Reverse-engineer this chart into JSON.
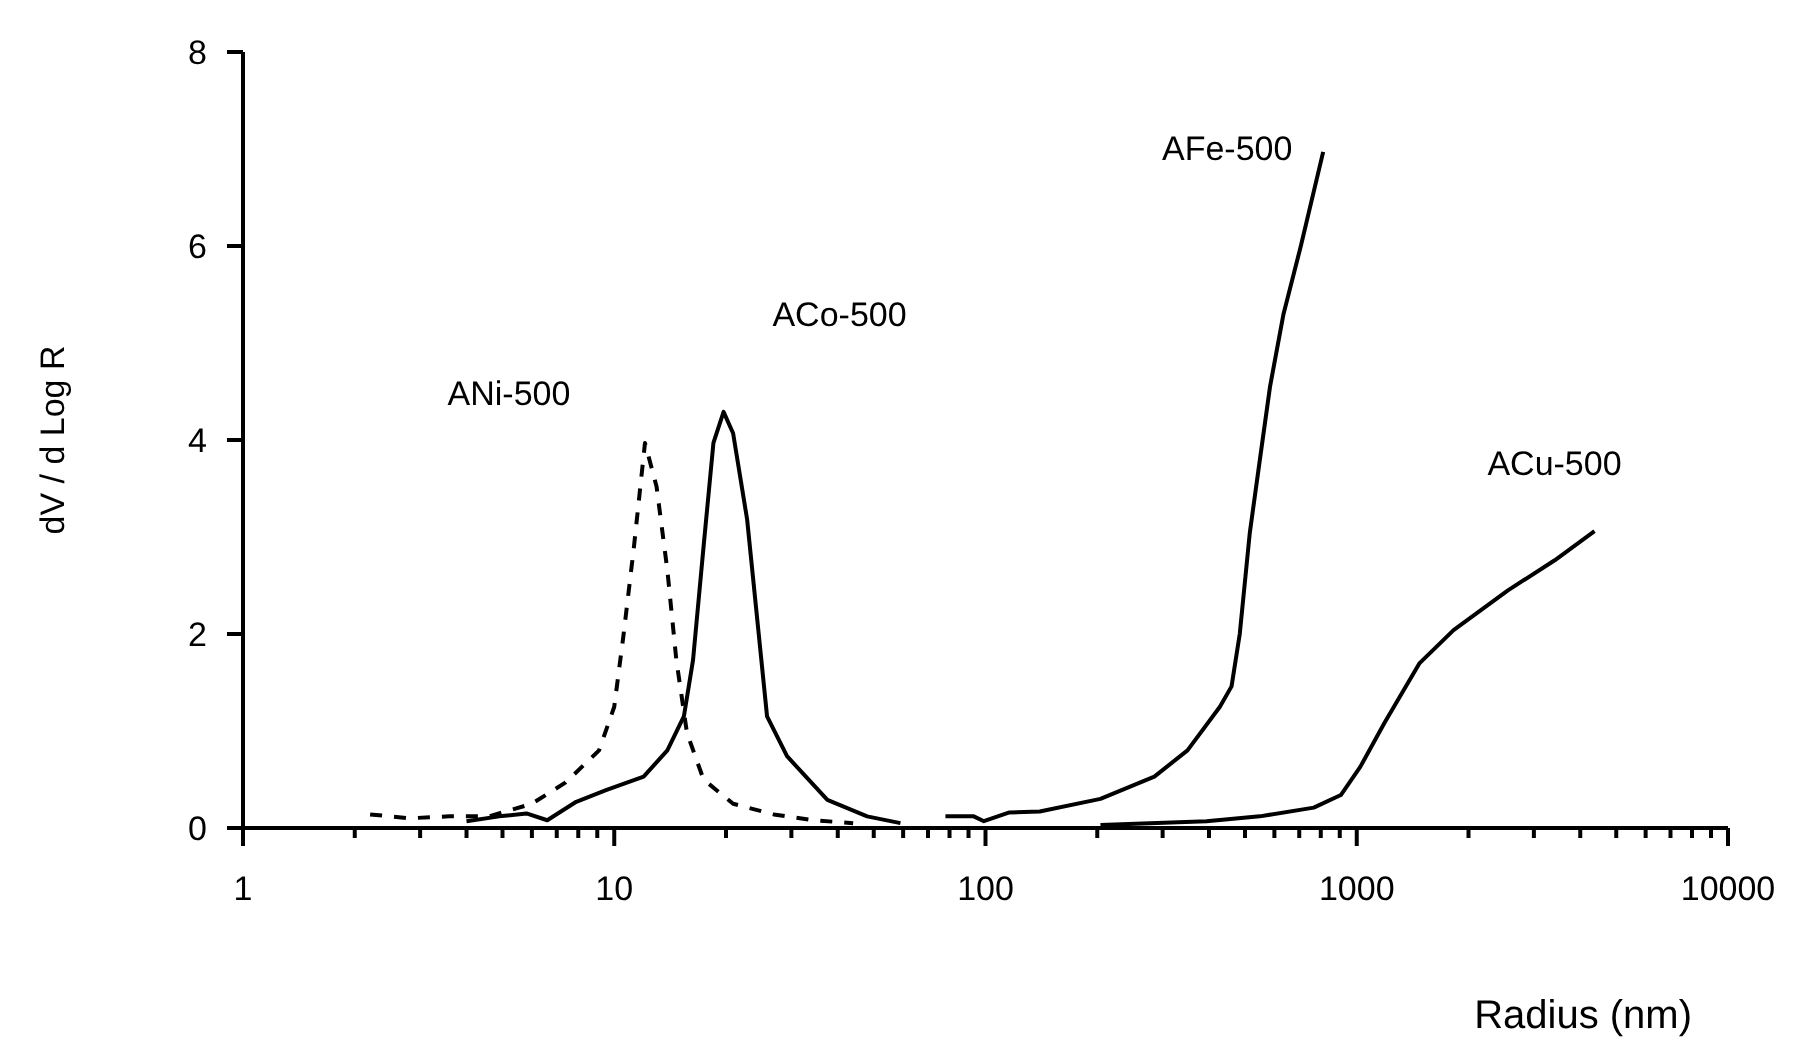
{
  "chart_data": {
    "type": "line",
    "xlabel": "Radius (nm)",
    "ylabel": "dV / d Log R",
    "log": "x",
    "xlim": [
      1,
      10000
    ],
    "xticks": [
      1,
      {
        "value": 2,
        "label": null
      },
      {
        "value": 3,
        "label": null
      },
      {
        "value": 4,
        "label": null
      },
      {
        "value": 5,
        "label": null
      },
      {
        "value": 6,
        "label": null
      },
      {
        "value": 7,
        "label": null
      },
      {
        "value": 8,
        "label": null
      },
      {
        "value": 9,
        "label": null
      },
      10,
      {
        "value": 20,
        "label": null
      },
      {
        "value": 30,
        "label": null
      },
      {
        "value": 40,
        "label": null
      },
      {
        "value": 50,
        "label": null
      },
      {
        "value": 60,
        "label": null
      },
      {
        "value": 70,
        "label": null
      },
      {
        "value": 80,
        "label": null
      },
      {
        "value": 90,
        "label": null
      },
      100,
      {
        "value": 200,
        "label": null
      },
      {
        "value": 300,
        "label": null
      },
      {
        "value": 400,
        "label": null
      },
      {
        "value": 500,
        "label": null
      },
      {
        "value": 600,
        "label": null
      },
      {
        "value": 700,
        "label": null
      },
      {
        "value": 800,
        "label": null
      },
      {
        "value": 900,
        "label": null
      },
      1000,
      {
        "value": 2000,
        "label": null
      },
      {
        "value": 3000,
        "label": null
      },
      {
        "value": 4000,
        "label": null
      },
      {
        "value": 5000,
        "label": null
      },
      {
        "value": 6000,
        "label": null
      },
      {
        "value": 7000,
        "label": null
      },
      {
        "value": 8000,
        "label": null
      },
      {
        "value": 9000,
        "label": null
      },
      10000
    ],
    "ylim": [
      0,
      8
    ],
    "yticks": [
      0,
      2,
      4,
      6,
      8
    ],
    "grid": false,
    "legend": false,
    "marker": "none",
    "series": [
      {
        "name": "ANi-500",
        "color": "#000000",
        "line_style": "dashed",
        "x": [
          2.2,
          2.8,
          3.6,
          4.6,
          6.0,
          7.4,
          9.1,
          10.0,
          10.6,
          11.3,
          12.1,
          13.0,
          13.9,
          14.7,
          15.7,
          17.4,
          20.9,
          26.9,
          34.4,
          44
        ],
        "values": [
          0.14,
          0.1,
          0.12,
          0.12,
          0.25,
          0.47,
          0.8,
          1.25,
          2.0,
          2.9,
          3.97,
          3.52,
          2.66,
          1.73,
          0.98,
          0.5,
          0.25,
          0.14,
          0.08,
          0.05
        ]
      },
      {
        "name": "ACo-500",
        "color": "#000000",
        "line_style": "solid",
        "x": [
          4.0,
          4.9,
          5.8,
          6.6,
          7.9,
          9.5,
          12.0,
          13.9,
          15.4,
          16.3,
          17.4,
          18.5,
          19.7,
          20.9,
          22.8,
          25.8,
          29.2,
          37.5,
          48,
          59
        ],
        "values": [
          0.07,
          0.12,
          0.15,
          0.08,
          0.27,
          0.39,
          0.53,
          0.8,
          1.15,
          1.73,
          2.9,
          3.97,
          4.29,
          4.07,
          3.18,
          1.15,
          0.74,
          0.29,
          0.12,
          0.05
        ]
      },
      {
        "name": "AFe-500",
        "color": "#000000",
        "line_style": "solid",
        "x": [
          78,
          93,
          99,
          116,
          140,
          204,
          285,
          350,
          428,
          460,
          484,
          515,
          548,
          584,
          635,
          707,
          812
        ],
        "values": [
          0.12,
          0.12,
          0.07,
          0.16,
          0.17,
          0.3,
          0.53,
          0.8,
          1.25,
          1.46,
          2.0,
          3.04,
          3.79,
          4.55,
          5.3,
          6.0,
          6.97
        ]
      },
      {
        "name": "ACu-500",
        "color": "#000000",
        "line_style": "solid",
        "x": [
          204,
          394,
          548,
          766,
          906,
          1022,
          1186,
          1477,
          1823,
          2554,
          3414,
          4370
        ],
        "values": [
          0.03,
          0.07,
          0.12,
          0.21,
          0.34,
          0.63,
          1.08,
          1.7,
          2.04,
          2.45,
          2.76,
          3.06
        ]
      }
    ]
  }
}
